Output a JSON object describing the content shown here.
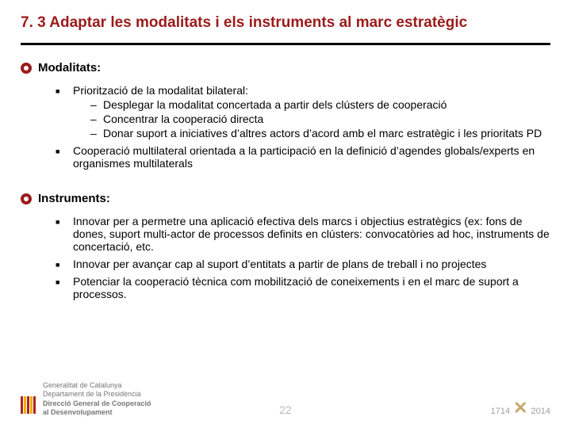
{
  "title": {
    "text": "7. 3 Adaptar les modalitats i els instruments al marc estratègic",
    "fontsize": 19
  },
  "body_fontsize": 14,
  "heading_fontsize": 15,
  "colors": {
    "accent": "#9b1b1b",
    "rule": "#000000",
    "text": "#000000",
    "pagenum": "#bbbbbb",
    "footer_text": "#777777"
  },
  "sections": [
    {
      "heading": "Modalitats:",
      "items": [
        {
          "text": "Priorització de la modalitat bilateral:",
          "sub": [
            "Desplegar la modalitat concertada a partir dels clústers de cooperació",
            "Concentrar la cooperació directa",
            "Donar suport a iniciatives d’altres actors d’acord amb el marc estratègic i les prioritats PD"
          ]
        },
        {
          "text": "Cooperació multilateral orientada a la participació en la definició d’agendes globals/experts en organismes multilaterals",
          "sub": []
        }
      ]
    },
    {
      "heading": "Instruments:",
      "items": [
        {
          "text": "Innovar per a permetre una aplicació efectiva dels marcs i objectius estratègics (ex: fons de dones, suport multi-actor de processos definits en clústers: convocatòries ad hoc, instruments de concertació, etc.",
          "sub": []
        },
        {
          "text": "Innovar per avançar cap al suport d’entitats a partir de plans de treball i no projectes",
          "sub": []
        },
        {
          "text": "Potenciar la cooperació tècnica com mobilització de coneixements i en el marc de suport a processos.",
          "sub": []
        }
      ]
    }
  ],
  "footer": {
    "org_lines": [
      "Generalitat de Catalunya",
      "Departament de la Presidència",
      "Direcció General de Cooperació",
      "al Desenvolupament"
    ],
    "bold_from_index": 2,
    "page_number": "22",
    "year_left": "1714",
    "year_right": "2014"
  }
}
